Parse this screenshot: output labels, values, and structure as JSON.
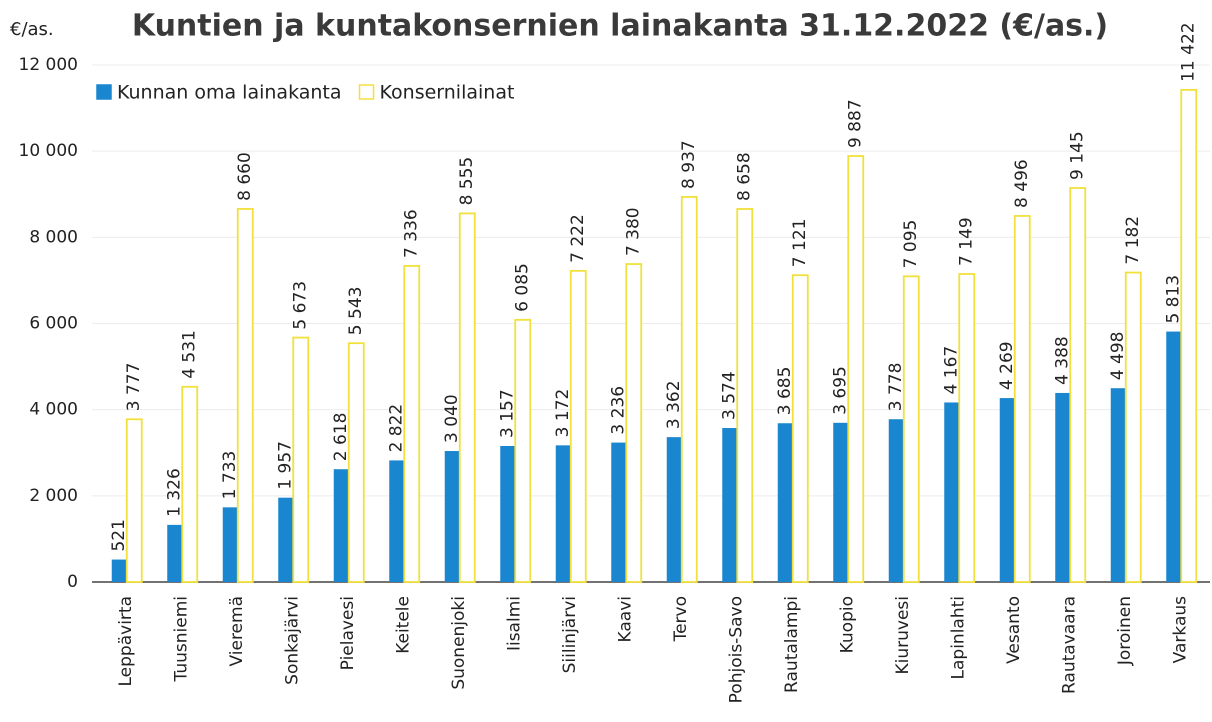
{
  "chart_data": {
    "type": "bar",
    "title": "Kuntien ja kuntakonsernien lainakanta 31.12.2022 (€/as.)",
    "y_label": "€/as.",
    "categories": [
      "Leppävirta",
      "Tuusniemi",
      "Vieremä",
      "Sonkajärvi",
      "Pielavesi",
      "Keitele",
      "Suonenjoki",
      "Iisalmi",
      "Siilinjärvi",
      "Kaavi",
      "Tervo",
      "Pohjois-Savo",
      "Rautalampi",
      "Kuopio",
      "Kiuruvesi",
      "Lapinlahti",
      "Vesanto",
      "Rautavaara",
      "Joroinen",
      "Varkaus"
    ],
    "series": [
      {
        "name": "Kunnan oma lainakanta",
        "color": "#1a86d0",
        "filled": true,
        "values": [
          521,
          1326,
          1733,
          1957,
          2618,
          2822,
          3040,
          3157,
          3172,
          3236,
          3362,
          3574,
          3685,
          3695,
          3778,
          4167,
          4269,
          4388,
          4498,
          5813
        ],
        "value_labels": [
          "521",
          "1 326",
          "1 733",
          "1 957",
          "2 618",
          "2 822",
          "3 040",
          "3 157",
          "3 172",
          "3 236",
          "3 362",
          "3 574",
          "3 685",
          "3 695",
          "3 778",
          "4 167",
          "4 269",
          "4 388",
          "4 498",
          "5 813"
        ]
      },
      {
        "name": "Konsernilainat",
        "color": "#f2e03c",
        "filled": false,
        "values": [
          3777,
          4531,
          8660,
          5673,
          5543,
          7336,
          8555,
          6085,
          7222,
          7380,
          8937,
          8658,
          7121,
          9887,
          7095,
          7149,
          8496,
          9145,
          7182,
          11422
        ],
        "value_labels": [
          "3 777",
          "4 531",
          "8 660",
          "5 673",
          "5 543",
          "7 336",
          "8 555",
          "6 085",
          "7 222",
          "7 380",
          "8 937",
          "8 658",
          "7 121",
          "9 887",
          "7 095",
          "7 149",
          "8 496",
          "9 145",
          "7 182",
          "11 422"
        ]
      }
    ],
    "ylim": [
      0,
      12000
    ],
    "yticks": [
      0,
      {
        "value": 2000,
        "label": "2 000"
      },
      {
        "value": 4000,
        "label": "4 000"
      },
      {
        "value": 6000,
        "label": "6 000"
      },
      {
        "value": 8000,
        "label": "8 000"
      },
      {
        "value": 10000,
        "label": "10 000"
      },
      {
        "value": 12000,
        "label": "12 000"
      }
    ],
    "grid": true
  }
}
